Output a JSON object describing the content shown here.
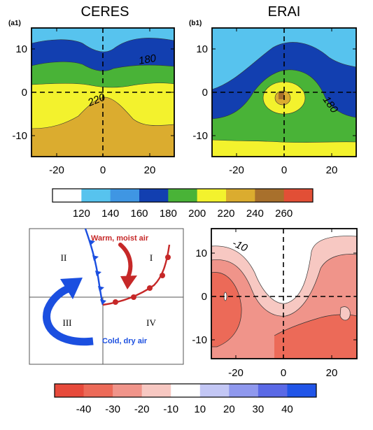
{
  "chart_data": [
    {
      "type": "contour",
      "panel_label": "(a1)",
      "title": "CERES",
      "xlim": [
        -30,
        30
      ],
      "ylim": [
        -15,
        15
      ],
      "x_ticks": [
        -20,
        0,
        20
      ],
      "y_ticks": [
        10,
        0,
        -10
      ],
      "contour_labels": [
        "180",
        "220"
      ],
      "dashed_zero_axes": true
    },
    {
      "type": "contour",
      "panel_label": "(b1)",
      "title": "ERAI",
      "xlim": [
        -30,
        30
      ],
      "ylim": [
        -15,
        15
      ],
      "x_ticks": [
        -20,
        0,
        20
      ],
      "y_ticks": [
        10,
        0,
        -10
      ],
      "contour_labels": [
        "180"
      ],
      "dashed_zero_axes": true
    },
    {
      "type": "colorbar",
      "tick_labels": [
        "120",
        "140",
        "160",
        "180",
        "200",
        "220",
        "240",
        "260"
      ],
      "colors": [
        "#ffffff",
        "#57c3ee",
        "#3f96e3",
        "#123fb0",
        "#49b337",
        "#f3f22d",
        "#dbac2f",
        "#a8702c",
        "#e24f36"
      ]
    },
    {
      "type": "diagram",
      "quadrants": [
        "I",
        "II",
        "III",
        "IV"
      ],
      "labels": [
        "Warm, moist air",
        "Cold, dry air"
      ]
    },
    {
      "type": "contour",
      "xlim": [
        -30,
        30
      ],
      "ylim": [
        -15,
        15
      ],
      "x_ticks": [
        -20,
        0,
        20
      ],
      "y_ticks": [
        10,
        0,
        -10
      ],
      "contour_labels": [
        "-10"
      ],
      "dashed_zero_axes": true
    },
    {
      "type": "colorbar",
      "tick_labels": [
        "-40",
        "-30",
        "-20",
        "-10",
        "10",
        "20",
        "30",
        "40"
      ],
      "colors": [
        "#e74a3b",
        "#ec6a58",
        "#f0948a",
        "#f7c8c2",
        "#ffffff",
        "#c3c7f5",
        "#8f98ee",
        "#5a69e6",
        "#2155e8"
      ]
    }
  ]
}
